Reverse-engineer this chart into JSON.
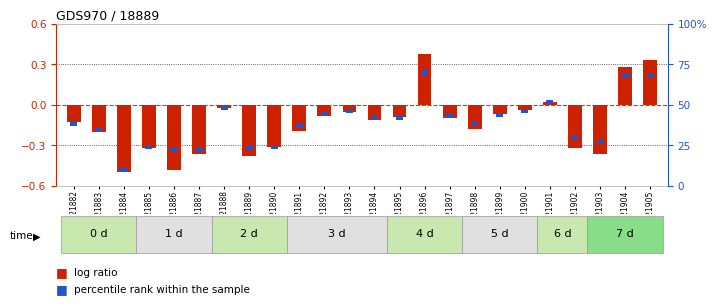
{
  "title": "GDS970 / 18889",
  "samples": [
    "GSM21882",
    "GSM21883",
    "GSM21884",
    "GSM21885",
    "GSM21886",
    "GSM21887",
    "GSM21888",
    "GSM21889",
    "GSM21890",
    "GSM21891",
    "GSM21892",
    "GSM21893",
    "GSM21894",
    "GSM21895",
    "GSM21896",
    "GSM21897",
    "GSM21898",
    "GSM21899",
    "GSM21900",
    "GSM21901",
    "GSM21902",
    "GSM21903",
    "GSM21904",
    "GSM21905"
  ],
  "log_ratio": [
    -0.13,
    -0.2,
    -0.5,
    -0.32,
    -0.48,
    -0.36,
    -0.02,
    -0.38,
    -0.31,
    -0.19,
    -0.08,
    -0.05,
    -0.11,
    -0.09,
    0.38,
    -0.1,
    -0.18,
    -0.07,
    -0.04,
    0.02,
    -0.32,
    -0.36,
    0.28,
    0.33
  ],
  "percentile_rank": [
    38,
    35,
    10,
    24,
    22,
    22,
    48,
    24,
    24,
    37,
    45,
    46,
    42,
    42,
    70,
    43,
    38,
    44,
    46,
    52,
    30,
    28,
    68,
    68
  ],
  "time_groups": [
    {
      "label": "0 d",
      "start": 0,
      "end": 3,
      "color": "#c8e8b0"
    },
    {
      "label": "1 d",
      "start": 3,
      "end": 6,
      "color": "#e0e0e0"
    },
    {
      "label": "2 d",
      "start": 6,
      "end": 9,
      "color": "#c8e8b0"
    },
    {
      "label": "3 d",
      "start": 9,
      "end": 13,
      "color": "#e0e0e0"
    },
    {
      "label": "4 d",
      "start": 13,
      "end": 16,
      "color": "#c8e8b0"
    },
    {
      "label": "5 d",
      "start": 16,
      "end": 19,
      "color": "#e0e0e0"
    },
    {
      "label": "6 d",
      "start": 19,
      "end": 21,
      "color": "#c8e8b0"
    },
    {
      "label": "7 d",
      "start": 21,
      "end": 24,
      "color": "#88dd88"
    }
  ],
  "ylim": [
    -0.6,
    0.6
  ],
  "yticks_left": [
    -0.6,
    -0.3,
    0.0,
    0.3,
    0.6
  ],
  "right_ytick_vals": [
    0,
    25,
    50,
    75,
    100
  ],
  "right_yticklabels": [
    "0",
    "25",
    "50",
    "75",
    "100%"
  ],
  "bar_color": "#cc2200",
  "pct_color": "#2255cc",
  "zero_line_color": "#cc3333",
  "dot_line_color": "#333333",
  "bar_width": 0.55,
  "pct_bar_width": 0.28,
  "pct_bar_height": 0.03
}
